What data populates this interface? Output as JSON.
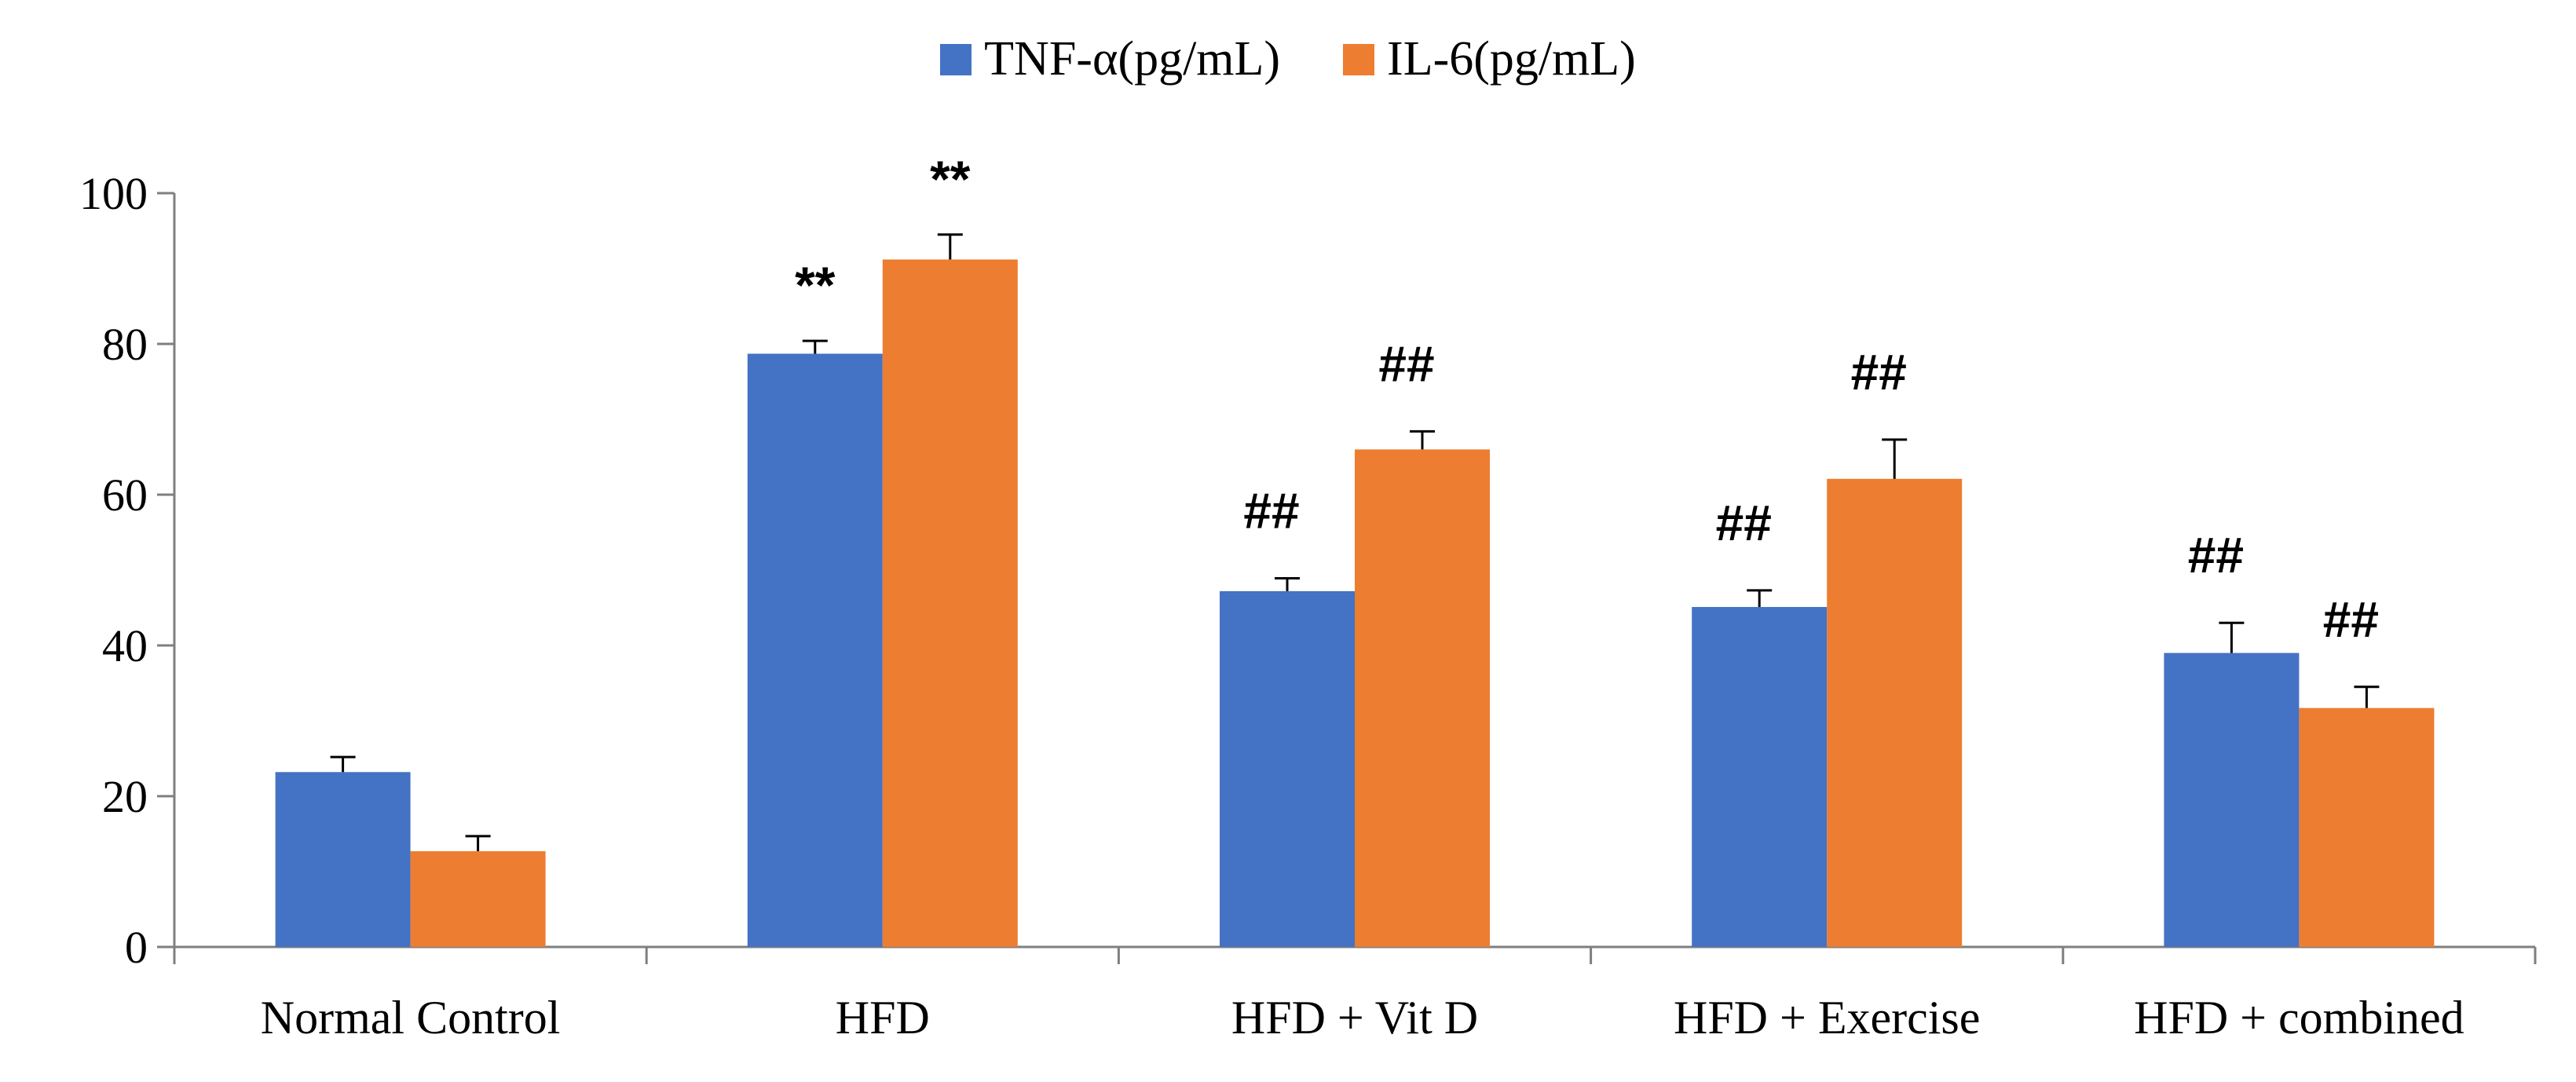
{
  "chart_data": {
    "type": "bar",
    "categories": [
      "Normal Control",
      "HFD",
      "HFD + Vit D",
      "HFD + Exercise",
      "HFD + combined"
    ],
    "series": [
      {
        "name": "TNF-α(pg/mL)",
        "color": "#4472C4",
        "values": [
          23.2,
          78.7,
          47.2,
          45.1,
          39.0
        ],
        "errors": [
          2.0,
          1.7,
          1.7,
          2.2,
          4.0
        ],
        "annotations": [
          "",
          "**",
          "##",
          "##",
          "##"
        ]
      },
      {
        "name": "IL-6(pg/mL)",
        "color": "#ED7D31",
        "values": [
          12.7,
          91.2,
          66.0,
          62.1,
          31.7
        ],
        "errors": [
          2.0,
          3.3,
          2.4,
          5.2,
          2.8
        ],
        "annotations": [
          "",
          "**",
          "##",
          "##",
          "##"
        ]
      }
    ],
    "y_ticks": [
      "0",
      "20",
      "40",
      "60",
      "80",
      "100"
    ],
    "ylim": [
      0,
      100
    ],
    "grid": false,
    "legend_position": "top-center"
  }
}
